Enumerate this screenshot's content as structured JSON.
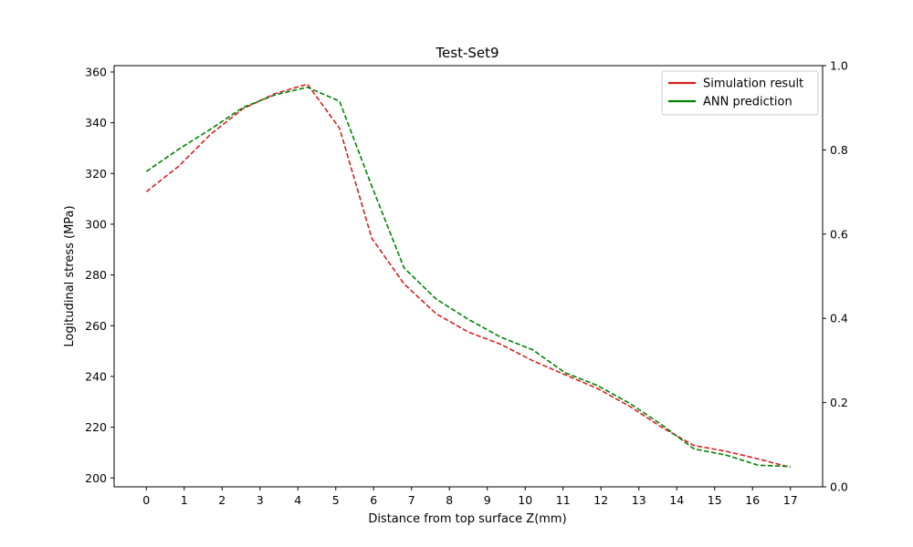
{
  "chart_data": {
    "type": "line",
    "title": "Test-Set9",
    "xlabel": "Distance from top surface Z(mm)",
    "ylabel": "Logitudinal stress (MPa)",
    "xlim": [
      -0.85,
      17.85
    ],
    "ylim": [
      196.5,
      362.5
    ],
    "x_ticks": [
      0,
      1,
      2,
      3,
      4,
      5,
      6,
      7,
      8,
      9,
      10,
      11,
      12,
      13,
      14,
      15,
      16,
      17
    ],
    "y_ticks": [
      200,
      220,
      240,
      260,
      280,
      300,
      320,
      340,
      360
    ],
    "y2lim": [
      0.0,
      1.0
    ],
    "y2_ticks": [
      "0.0",
      "0.2",
      "0.4",
      "0.6",
      "0.8",
      "1.0"
    ],
    "grid": false,
    "legend_position": "top-right",
    "series": [
      {
        "name": "Simulation result",
        "color": "#d62020",
        "x": [
          0,
          0.85,
          1.7,
          2.55,
          3.4,
          4.25,
          5.1,
          5.95,
          6.8,
          7.65,
          8.5,
          9.35,
          10.2,
          11.05,
          11.9,
          12.75,
          13.6,
          14.45,
          15.3,
          16.15,
          17
        ],
        "y": [
          312.8,
          322.8,
          335.5,
          345.5,
          351.5,
          355.2,
          337.8,
          294.5,
          276.5,
          264.7,
          257.5,
          252.7,
          246.2,
          240.7,
          235.3,
          228.3,
          220.0,
          212.8,
          210.5,
          207.5,
          204.2
        ]
      },
      {
        "name": "ANN prediction",
        "color": "#008000",
        "x": [
          0,
          0.85,
          1.7,
          2.55,
          3.4,
          4.25,
          5.1,
          5.95,
          6.8,
          7.65,
          8.5,
          9.35,
          10.2,
          11.05,
          11.9,
          12.75,
          13.6,
          14.45,
          15.3,
          16.15,
          17
        ],
        "y": [
          320.8,
          329.5,
          337.5,
          346.0,
          351.0,
          354.0,
          348.5,
          315.0,
          282.8,
          270.5,
          262.5,
          255.5,
          250.5,
          241.5,
          236.5,
          229.5,
          221.0,
          211.5,
          209.0,
          205.0,
          204.5
        ]
      }
    ]
  }
}
